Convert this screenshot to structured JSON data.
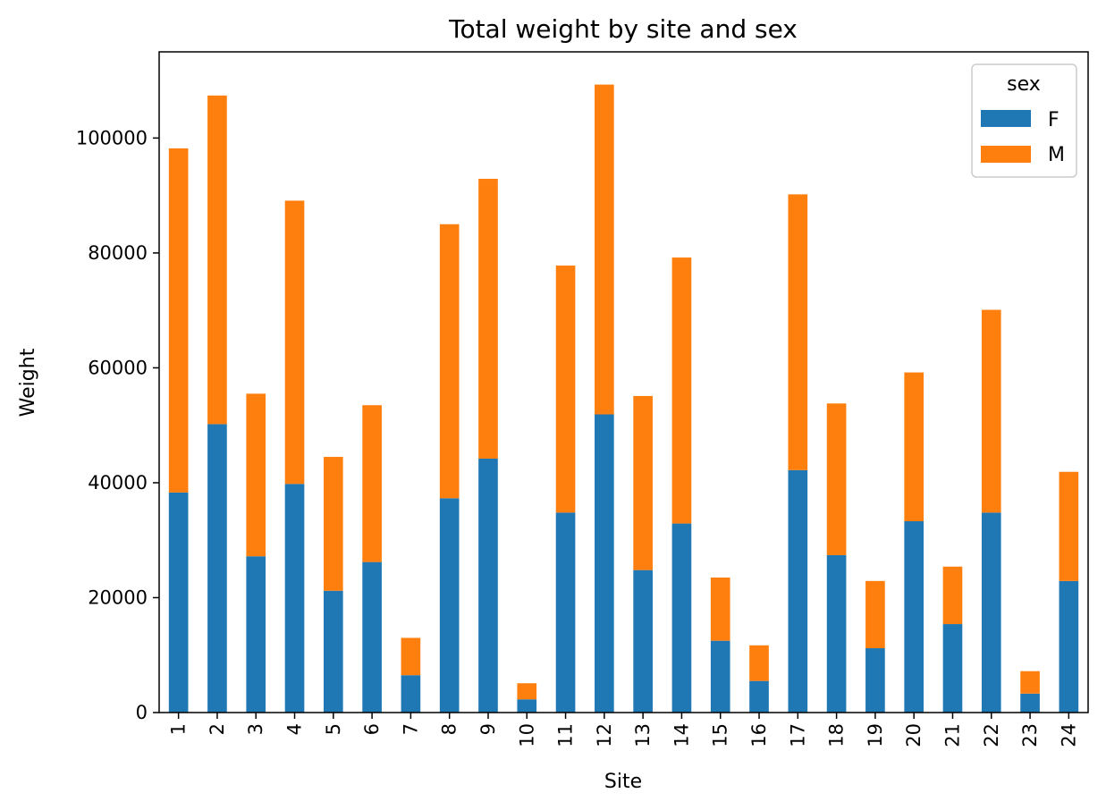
{
  "chart_data": {
    "type": "bar",
    "stacked": true,
    "title": "Total weight by site and sex",
    "xlabel": "Site",
    "ylabel": "Weight",
    "categories": [
      "1",
      "2",
      "3",
      "4",
      "5",
      "6",
      "7",
      "8",
      "9",
      "10",
      "11",
      "12",
      "13",
      "14",
      "15",
      "16",
      "17",
      "18",
      "19",
      "20",
      "21",
      "22",
      "23",
      "24"
    ],
    "series": [
      {
        "name": "F",
        "color": "#1f77b4",
        "values": [
          38300,
          50200,
          27200,
          39800,
          21200,
          26200,
          6500,
          37300,
          44200,
          2300,
          34800,
          51900,
          24800,
          32900,
          12500,
          5500,
          42200,
          27400,
          11200,
          33300,
          15400,
          34800,
          3300,
          22900
        ]
      },
      {
        "name": "M",
        "color": "#ff7f0e",
        "values": [
          59900,
          57200,
          28300,
          49300,
          23300,
          27300,
          6500,
          47700,
          48700,
          2800,
          43000,
          57400,
          30300,
          46300,
          11000,
          6200,
          48000,
          26400,
          11700,
          25900,
          10000,
          35300,
          3900,
          19000
        ]
      }
    ],
    "ylim": [
      0,
      115000
    ],
    "yticks": [
      "0",
      "20000",
      "40000",
      "60000",
      "80000",
      "100000"
    ],
    "legend": {
      "title": "sex",
      "position": "top-right"
    },
    "grid": false
  }
}
